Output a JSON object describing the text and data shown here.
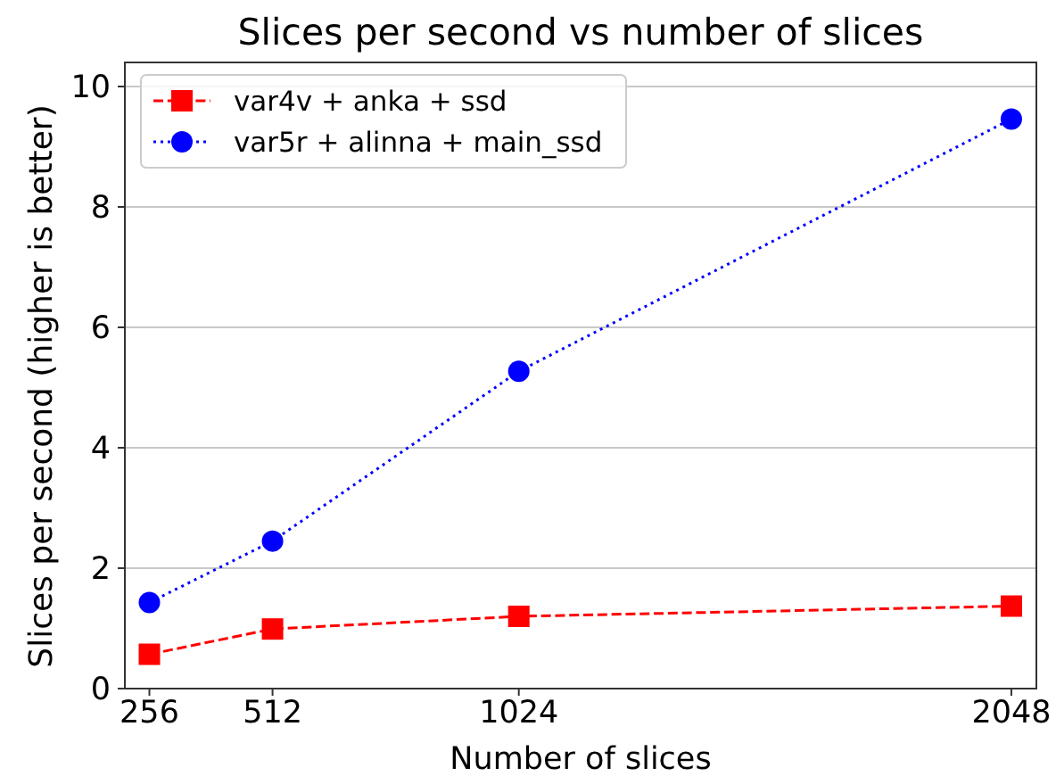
{
  "chart_data": {
    "type": "line",
    "title": "Slices per second vs number of slices",
    "xlabel": "Number of slices",
    "ylabel": "Slices per second (higher is better)",
    "x": [
      256,
      512,
      1024,
      2048
    ],
    "series": [
      {
        "name": "var4v + anka + ssd",
        "color": "#ff0000",
        "values": [
          0.57,
          0.99,
          1.2,
          1.37
        ],
        "marker": "square",
        "line_style": "dashed"
      },
      {
        "name": "var5r + alinna + main_ssd",
        "color": "#0000ff",
        "values": [
          1.43,
          2.45,
          5.27,
          9.46
        ],
        "marker": "circle",
        "line_style": "dotted"
      }
    ],
    "xlim": [
      205,
      2100
    ],
    "xticks": [
      256,
      512,
      1024,
      2048
    ],
    "ylim": [
      0,
      10.4
    ],
    "yticks": [
      0,
      2,
      4,
      6,
      8,
      10
    ],
    "grid": "y",
    "legend": "top left"
  }
}
